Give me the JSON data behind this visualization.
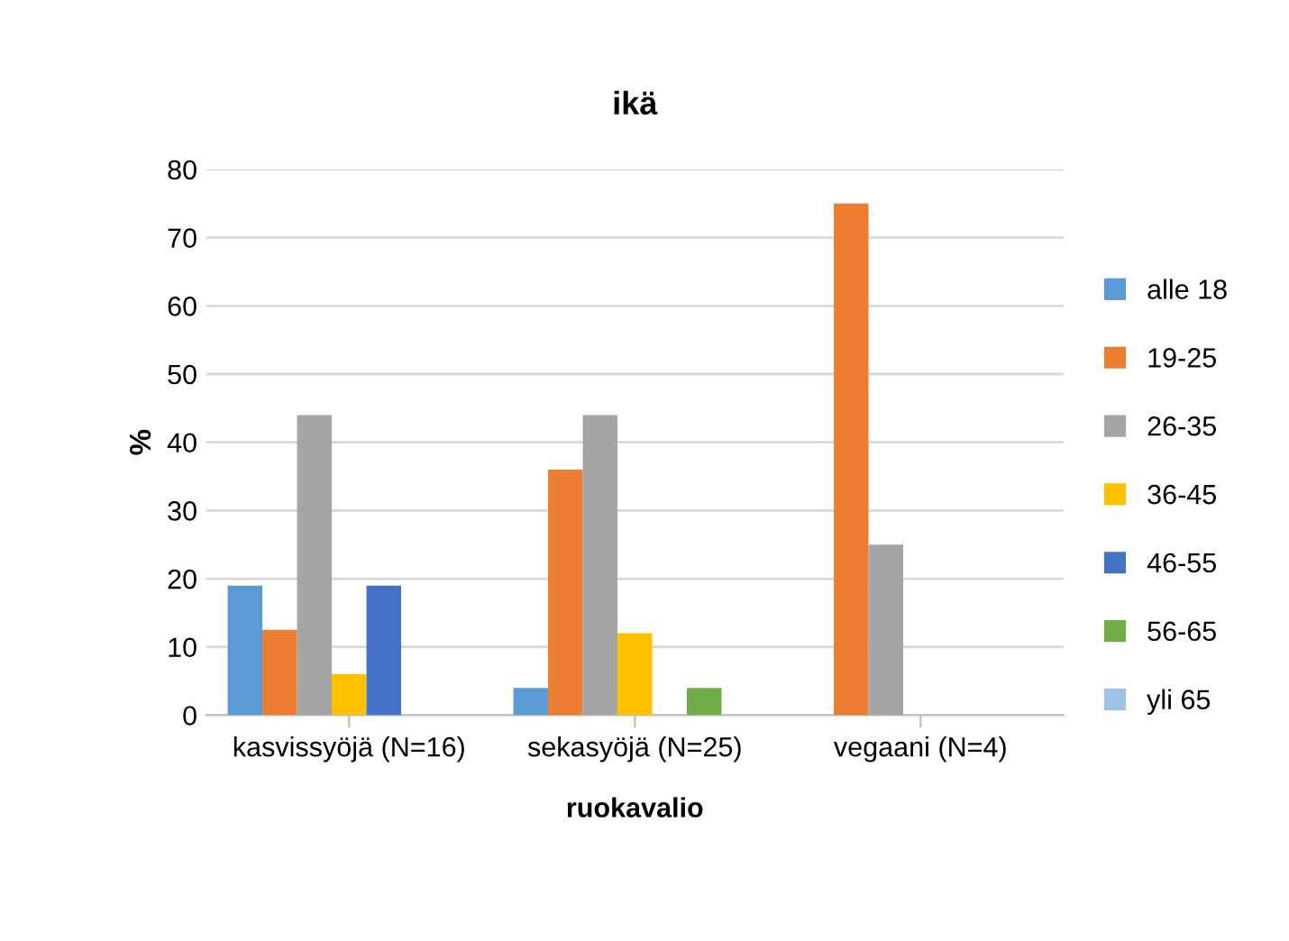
{
  "chart_data": {
    "type": "bar",
    "title": "ikä",
    "xlabel": "ruokavalio",
    "ylabel": "%",
    "categories": [
      "kasvissyöjä (N=16)",
      "sekasyöjä (N=25)",
      "vegaani (N=4)"
    ],
    "series": [
      {
        "name": "alle 18",
        "color": "#5b9bd5",
        "values": [
          19,
          4,
          0
        ]
      },
      {
        "name": "19-25",
        "color": "#ed7d31",
        "values": [
          12.5,
          36,
          75
        ]
      },
      {
        "name": "26-35",
        "color": "#a5a5a5",
        "values": [
          44,
          44,
          25
        ]
      },
      {
        "name": "36-45",
        "color": "#ffc000",
        "values": [
          6,
          12,
          0
        ]
      },
      {
        "name": "46-55",
        "color": "#4472c4",
        "values": [
          19,
          0,
          0
        ]
      },
      {
        "name": "56-65",
        "color": "#70ad47",
        "values": [
          0,
          4,
          0
        ]
      },
      {
        "name": "yli 65",
        "color": "#9dc3e6",
        "values": [
          0,
          0,
          0
        ]
      }
    ],
    "ylim": [
      0,
      80
    ],
    "yticks": [
      0,
      10,
      20,
      30,
      40,
      50,
      60,
      70,
      80
    ],
    "grid": "y",
    "legend": "right"
  }
}
